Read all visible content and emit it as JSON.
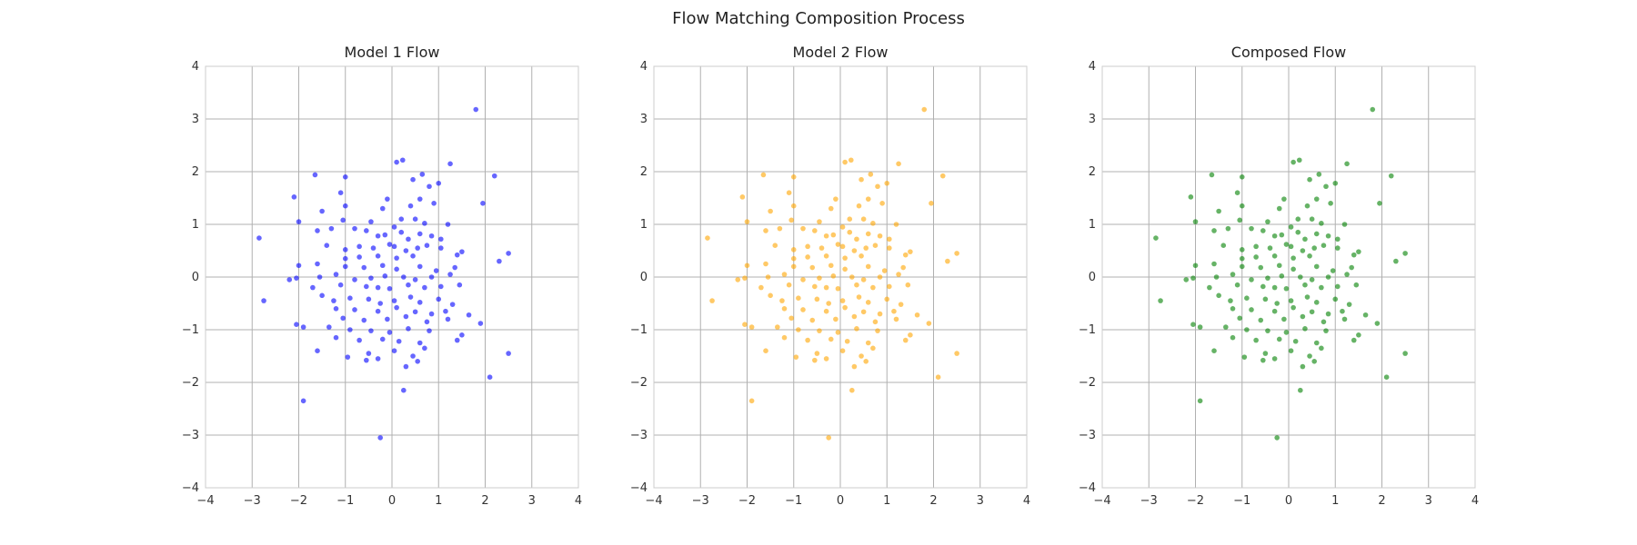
{
  "figure": {
    "suptitle": "Flow Matching Composition Process"
  },
  "chart_data": [
    {
      "type": "scatter",
      "title": "Model 1 Flow",
      "xlabel": "",
      "ylabel": "",
      "xlim": [
        -4,
        4
      ],
      "ylim": [
        -4,
        4
      ],
      "xticks": [
        "−4",
        "−3",
        "−2",
        "−1",
        "0",
        "1",
        "2",
        "3",
        "4"
      ],
      "yticks": [
        "−4",
        "−3",
        "−2",
        "−1",
        "0",
        "1",
        "2",
        "3",
        "4"
      ],
      "grid": true,
      "color": "#0000ff",
      "points_ref": "points"
    },
    {
      "type": "scatter",
      "title": "Model 2 Flow",
      "xlabel": "",
      "ylabel": "",
      "xlim": [
        -4,
        4
      ],
      "ylim": [
        -4,
        4
      ],
      "xticks": [
        "−4",
        "−3",
        "−2",
        "−1",
        "0",
        "1",
        "2",
        "3",
        "4"
      ],
      "yticks": [
        "−4",
        "−3",
        "−2",
        "−1",
        "0",
        "1",
        "2",
        "3",
        "4"
      ],
      "grid": true,
      "color": "#ffa500",
      "points_ref": "points"
    },
    {
      "type": "scatter",
      "title": "Composed Flow",
      "xlabel": "",
      "ylabel": "",
      "xlim": [
        -4,
        4
      ],
      "ylim": [
        -4,
        4
      ],
      "xticks": [
        "−4",
        "−3",
        "−2",
        "−1",
        "0",
        "1",
        "2",
        "3",
        "4"
      ],
      "yticks": [
        "−4",
        "−3",
        "−2",
        "−1",
        "0",
        "1",
        "2",
        "3",
        "4"
      ],
      "grid": true,
      "color": "#008000",
      "points_ref": "points"
    }
  ],
  "points": [
    [
      1.8,
      3.18
    ],
    [
      0.23,
      2.22
    ],
    [
      0.1,
      2.18
    ],
    [
      1.25,
      2.15
    ],
    [
      2.2,
      1.92
    ],
    [
      -1.65,
      1.94
    ],
    [
      0.65,
      1.95
    ],
    [
      -1.0,
      1.9
    ],
    [
      0.45,
      1.85
    ],
    [
      1.0,
      1.78
    ],
    [
      0.8,
      1.72
    ],
    [
      -2.1,
      1.52
    ],
    [
      -0.1,
      1.48
    ],
    [
      0.6,
      1.48
    ],
    [
      1.95,
      1.4
    ],
    [
      -1.1,
      1.6
    ],
    [
      -0.2,
      1.3
    ],
    [
      0.4,
      1.35
    ],
    [
      0.9,
      1.4
    ],
    [
      -1.5,
      1.25
    ],
    [
      -1.0,
      1.35
    ],
    [
      0.2,
      1.1
    ],
    [
      -2.0,
      1.05
    ],
    [
      -1.05,
      1.08
    ],
    [
      -0.45,
      1.05
    ],
    [
      0.05,
      0.95
    ],
    [
      0.5,
      1.1
    ],
    [
      0.7,
      1.02
    ],
    [
      1.2,
      1.0
    ],
    [
      -2.85,
      0.74
    ],
    [
      -1.6,
      0.88
    ],
    [
      -1.3,
      0.92
    ],
    [
      -0.8,
      0.92
    ],
    [
      -0.55,
      0.88
    ],
    [
      -0.3,
      0.78
    ],
    [
      -0.15,
      0.8
    ],
    [
      0.2,
      0.85
    ],
    [
      0.35,
      0.72
    ],
    [
      0.6,
      0.82
    ],
    [
      0.85,
      0.78
    ],
    [
      1.05,
      0.72
    ],
    [
      -1.4,
      0.6
    ],
    [
      -1.0,
      0.52
    ],
    [
      -0.7,
      0.58
    ],
    [
      -0.4,
      0.55
    ],
    [
      -0.05,
      0.62
    ],
    [
      0.05,
      0.58
    ],
    [
      0.3,
      0.5
    ],
    [
      0.55,
      0.55
    ],
    [
      0.75,
      0.6
    ],
    [
      1.05,
      0.55
    ],
    [
      1.5,
      0.48
    ],
    [
      2.5,
      0.45
    ],
    [
      -1.0,
      0.35
    ],
    [
      -0.7,
      0.38
    ],
    [
      -0.3,
      0.4
    ],
    [
      0.1,
      0.36
    ],
    [
      0.45,
      0.4
    ],
    [
      1.4,
      0.42
    ],
    [
      2.3,
      0.3
    ],
    [
      -2.0,
      0.22
    ],
    [
      -1.6,
      0.25
    ],
    [
      -1.0,
      0.2
    ],
    [
      -0.6,
      0.18
    ],
    [
      -0.2,
      0.22
    ],
    [
      0.1,
      0.15
    ],
    [
      0.6,
      0.2
    ],
    [
      0.95,
      0.12
    ],
    [
      1.35,
      0.18
    ],
    [
      -2.2,
      -0.05
    ],
    [
      -2.05,
      -0.02
    ],
    [
      -1.55,
      0.0
    ],
    [
      -1.2,
      0.05
    ],
    [
      -0.8,
      -0.05
    ],
    [
      -0.45,
      -0.02
    ],
    [
      -0.15,
      0.02
    ],
    [
      0.25,
      0.0
    ],
    [
      0.5,
      -0.05
    ],
    [
      0.85,
      0.0
    ],
    [
      1.25,
      0.05
    ],
    [
      -1.7,
      -0.2
    ],
    [
      -1.1,
      -0.15
    ],
    [
      -0.55,
      -0.18
    ],
    [
      -0.3,
      -0.2
    ],
    [
      -0.05,
      -0.22
    ],
    [
      0.35,
      -0.15
    ],
    [
      0.7,
      -0.2
    ],
    [
      1.05,
      -0.18
    ],
    [
      1.45,
      -0.15
    ],
    [
      -2.75,
      -0.45
    ],
    [
      -1.5,
      -0.35
    ],
    [
      -1.25,
      -0.45
    ],
    [
      -0.9,
      -0.4
    ],
    [
      -0.5,
      -0.42
    ],
    [
      -0.25,
      -0.5
    ],
    [
      0.05,
      -0.45
    ],
    [
      0.4,
      -0.38
    ],
    [
      0.6,
      -0.48
    ],
    [
      1.0,
      -0.42
    ],
    [
      1.3,
      -0.52
    ],
    [
      -1.2,
      -0.6
    ],
    [
      -0.8,
      -0.62
    ],
    [
      -0.3,
      -0.65
    ],
    [
      0.1,
      -0.58
    ],
    [
      0.5,
      -0.66
    ],
    [
      0.85,
      -0.7
    ],
    [
      1.15,
      -0.65
    ],
    [
      1.65,
      -0.72
    ],
    [
      -1.05,
      -0.78
    ],
    [
      -0.6,
      -0.82
    ],
    [
      -0.1,
      -0.8
    ],
    [
      0.3,
      -0.75
    ],
    [
      0.75,
      -0.85
    ],
    [
      1.2,
      -0.8
    ],
    [
      1.9,
      -0.88
    ],
    [
      -2.05,
      -0.9
    ],
    [
      -1.9,
      -0.95
    ],
    [
      -1.35,
      -0.95
    ],
    [
      -0.9,
      -1.0
    ],
    [
      -0.45,
      -1.02
    ],
    [
      -0.05,
      -1.05
    ],
    [
      0.35,
      -0.98
    ],
    [
      0.8,
      -1.02
    ],
    [
      1.5,
      -1.1
    ],
    [
      -1.2,
      -1.15
    ],
    [
      -0.7,
      -1.2
    ],
    [
      -0.2,
      -1.18
    ],
    [
      0.15,
      -1.22
    ],
    [
      0.6,
      -1.25
    ],
    [
      1.4,
      -1.2
    ],
    [
      -1.6,
      -1.4
    ],
    [
      -0.95,
      -1.52
    ],
    [
      -0.5,
      -1.45
    ],
    [
      -0.3,
      -1.55
    ],
    [
      0.05,
      -1.4
    ],
    [
      0.45,
      -1.5
    ],
    [
      0.7,
      -1.35
    ],
    [
      2.5,
      -1.45
    ],
    [
      -0.55,
      -1.58
    ],
    [
      0.3,
      -1.7
    ],
    [
      0.55,
      -1.6
    ],
    [
      2.1,
      -1.9
    ],
    [
      0.25,
      -2.15
    ],
    [
      -1.9,
      -2.35
    ],
    [
      -0.25,
      -3.05
    ]
  ]
}
